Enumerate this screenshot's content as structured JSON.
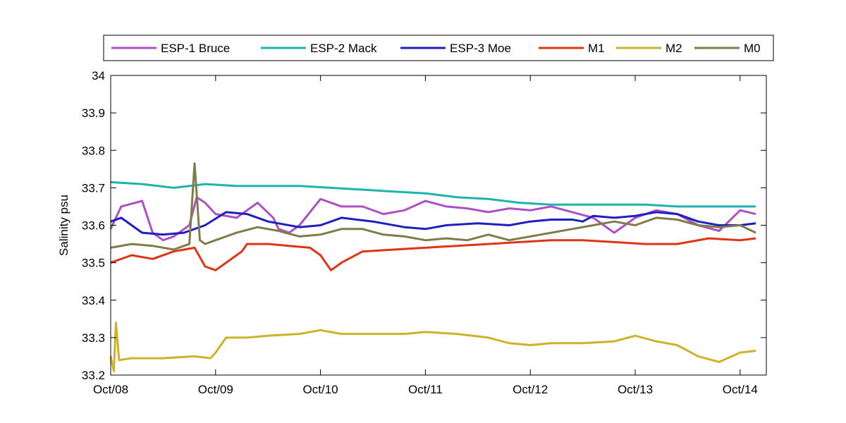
{
  "chart_data": {
    "type": "line",
    "title": "",
    "xlabel": "",
    "ylabel": "Salinity psu",
    "ylim": [
      33.2,
      34.0
    ],
    "yticks": [
      33.2,
      33.3,
      33.4,
      33.5,
      33.6,
      33.7,
      33.8,
      33.9,
      34.0
    ],
    "ytick_labels": [
      "33.2",
      "33.3",
      "33.4",
      "33.5",
      "33.6",
      "33.7",
      "33.8",
      "33.9",
      "34"
    ],
    "xlim": [
      "Oct/08",
      "Oct/14 +0.25 day"
    ],
    "xticks": [
      "Oct/08",
      "Oct/09",
      "Oct/10",
      "Oct/11",
      "Oct/12",
      "Oct/13",
      "Oct/14"
    ],
    "legend": "top-outside",
    "grid": false,
    "series": [
      {
        "name": "ESP-1 Bruce",
        "color": "#b04fc3",
        "x": [
          0.0,
          0.1,
          0.3,
          0.4,
          0.5,
          0.6,
          0.75,
          0.82,
          0.9,
          1.0,
          1.2,
          1.4,
          1.55,
          1.6,
          1.7,
          1.8,
          2.0,
          2.2,
          2.4,
          2.6,
          2.8,
          3.0,
          3.2,
          3.4,
          3.6,
          3.8,
          4.0,
          4.2,
          4.4,
          4.6,
          4.8,
          5.0,
          5.2,
          5.4,
          5.6,
          5.8,
          6.0,
          6.15
        ],
        "values": [
          33.59,
          33.65,
          33.665,
          33.58,
          33.56,
          33.57,
          33.6,
          33.675,
          33.66,
          33.63,
          33.62,
          33.66,
          33.62,
          33.59,
          33.58,
          33.6,
          33.67,
          33.65,
          33.65,
          33.63,
          33.64,
          33.665,
          33.65,
          33.645,
          33.635,
          33.645,
          33.64,
          33.65,
          33.635,
          33.62,
          33.58,
          33.62,
          33.64,
          33.63,
          33.6,
          33.585,
          33.64,
          33.63
        ]
      },
      {
        "name": "ESP-2 Mack",
        "color": "#1fb3ad",
        "x": [
          0.0,
          0.3,
          0.6,
          0.9,
          1.2,
          1.5,
          1.8,
          2.1,
          2.4,
          2.7,
          3.0,
          3.3,
          3.6,
          3.9,
          4.2,
          4.5,
          4.8,
          5.1,
          5.4,
          5.7,
          6.0,
          6.15
        ],
        "values": [
          33.715,
          33.71,
          33.7,
          33.71,
          33.705,
          33.705,
          33.705,
          33.7,
          33.695,
          33.69,
          33.685,
          33.675,
          33.67,
          33.66,
          33.655,
          33.655,
          33.655,
          33.655,
          33.65,
          33.65,
          33.65,
          33.65
        ]
      },
      {
        "name": "ESP-3 Moe",
        "color": "#1f1fbf",
        "x": [
          0.0,
          0.1,
          0.3,
          0.5,
          0.7,
          0.9,
          1.1,
          1.3,
          1.5,
          1.8,
          2.0,
          2.2,
          2.5,
          2.8,
          3.0,
          3.2,
          3.5,
          3.8,
          4.0,
          4.2,
          4.4,
          4.5,
          4.6,
          4.8,
          5.0,
          5.2,
          5.4,
          5.6,
          5.8,
          6.0,
          6.15
        ],
        "values": [
          33.61,
          33.62,
          33.58,
          33.575,
          33.58,
          33.6,
          33.635,
          33.63,
          33.61,
          33.595,
          33.6,
          33.62,
          33.61,
          33.595,
          33.59,
          33.6,
          33.605,
          33.6,
          33.61,
          33.615,
          33.615,
          33.61,
          33.625,
          33.62,
          33.625,
          33.635,
          33.63,
          33.61,
          33.6,
          33.6,
          33.605
        ]
      },
      {
        "name": "M1",
        "color": "#e03416",
        "x": [
          0.0,
          0.2,
          0.4,
          0.6,
          0.8,
          0.9,
          1.0,
          1.1,
          1.2,
          1.25,
          1.3,
          1.5,
          1.7,
          1.9,
          2.0,
          2.1,
          2.2,
          2.4,
          2.7,
          3.0,
          3.3,
          3.6,
          3.9,
          4.2,
          4.5,
          4.8,
          5.1,
          5.4,
          5.7,
          6.0,
          6.15
        ],
        "values": [
          33.5,
          33.52,
          33.51,
          33.53,
          33.54,
          33.49,
          33.48,
          33.5,
          33.52,
          33.53,
          33.55,
          33.55,
          33.545,
          33.54,
          33.52,
          33.48,
          33.5,
          33.53,
          33.535,
          33.54,
          33.545,
          33.55,
          33.555,
          33.56,
          33.56,
          33.555,
          33.55,
          33.55,
          33.565,
          33.56,
          33.565
        ]
      },
      {
        "name": "M2",
        "color": "#cdb32a",
        "x": [
          0.0,
          0.03,
          0.05,
          0.08,
          0.2,
          0.5,
          0.8,
          0.95,
          1.0,
          1.1,
          1.3,
          1.5,
          1.8,
          2.0,
          2.2,
          2.5,
          2.8,
          3.0,
          3.3,
          3.6,
          3.8,
          4.0,
          4.2,
          4.5,
          4.8,
          5.0,
          5.2,
          5.4,
          5.6,
          5.8,
          6.0,
          6.15
        ],
        "values": [
          33.25,
          33.21,
          33.34,
          33.24,
          33.245,
          33.245,
          33.25,
          33.245,
          33.26,
          33.3,
          33.3,
          33.305,
          33.31,
          33.32,
          33.31,
          33.31,
          33.31,
          33.315,
          33.31,
          33.3,
          33.285,
          33.28,
          33.285,
          33.285,
          33.29,
          33.305,
          33.29,
          33.28,
          33.25,
          33.235,
          33.26,
          33.265
        ]
      },
      {
        "name": "M0",
        "color": "#7f7c4a",
        "x": [
          0.0,
          0.2,
          0.4,
          0.6,
          0.75,
          0.8,
          0.85,
          0.9,
          1.0,
          1.2,
          1.4,
          1.6,
          1.8,
          2.0,
          2.2,
          2.4,
          2.6,
          2.8,
          3.0,
          3.2,
          3.4,
          3.6,
          3.8,
          4.0,
          4.2,
          4.4,
          4.6,
          4.8,
          5.0,
          5.2,
          5.4,
          5.6,
          5.8,
          6.0,
          6.15
        ],
        "values": [
          33.54,
          33.55,
          33.545,
          33.535,
          33.55,
          33.765,
          33.56,
          33.55,
          33.56,
          33.58,
          33.595,
          33.585,
          33.57,
          33.575,
          33.59,
          33.59,
          33.575,
          33.57,
          33.56,
          33.565,
          33.56,
          33.575,
          33.56,
          33.57,
          33.58,
          33.59,
          33.6,
          33.61,
          33.6,
          33.62,
          33.615,
          33.6,
          33.595,
          33.6,
          33.58
        ]
      }
    ]
  }
}
